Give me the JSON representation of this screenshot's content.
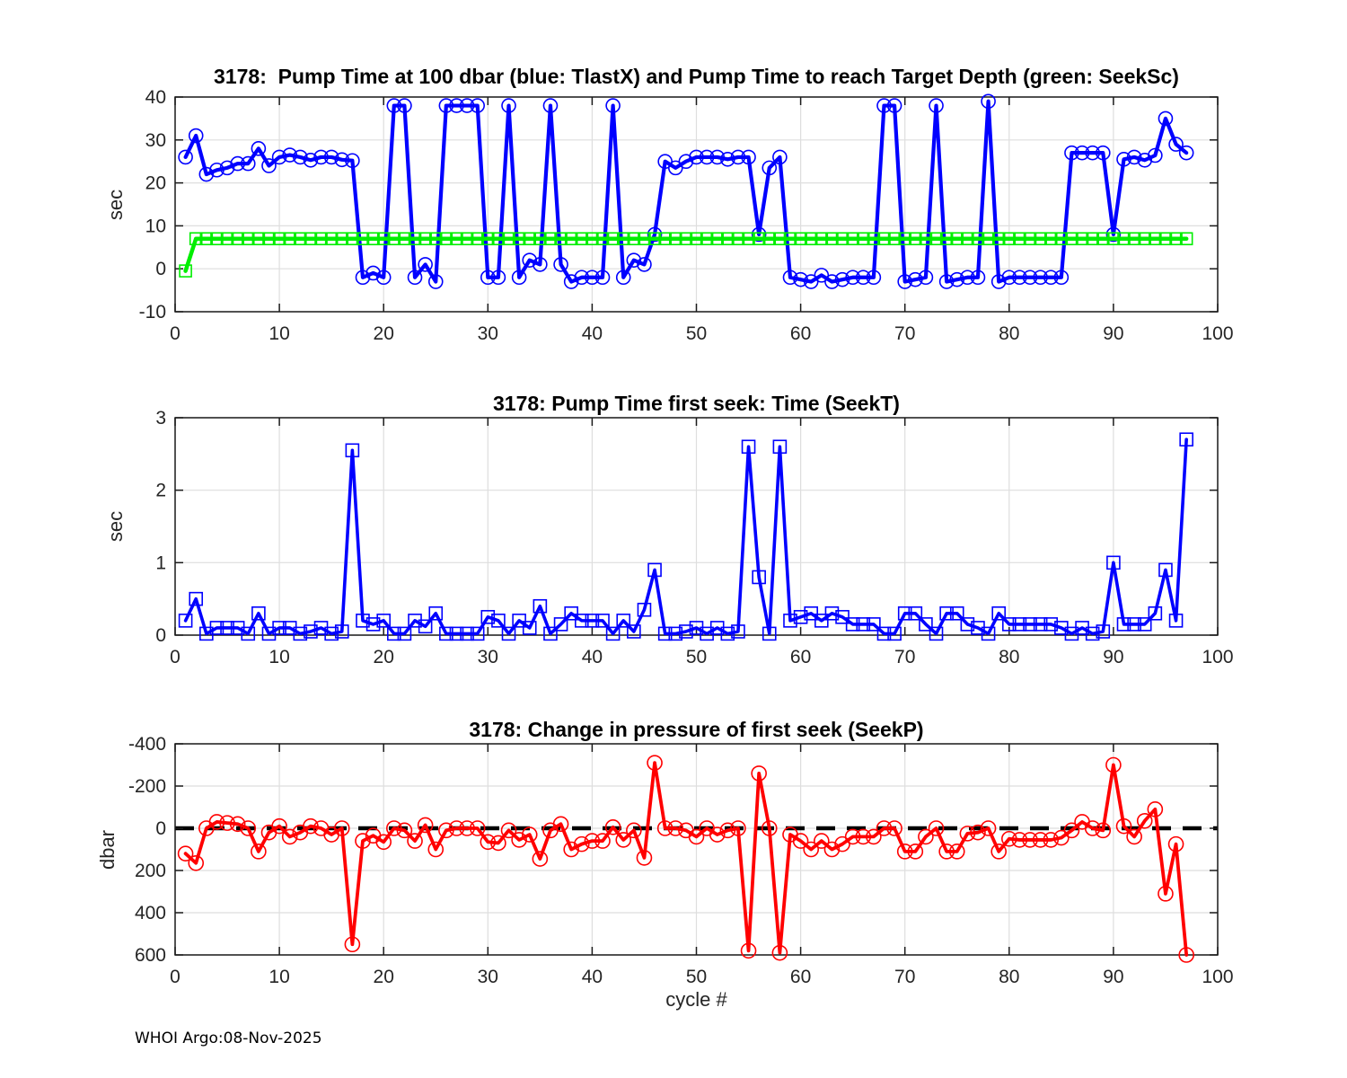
{
  "footer": "WHOI Argo:08-Nov-2025",
  "xlabel": "cycle #",
  "colors": {
    "blue": "#0000ff",
    "green": "#00ee00",
    "red": "#ff0000",
    "zero_line": "#000000",
    "grid": "#dedede",
    "axis": "#1a1a1a"
  },
  "chart_data": [
    {
      "type": "line",
      "title": "3178:  Pump Time at 100 dbar (blue: TlastX) and Pump Time to reach Target Depth (green: SeekSc)",
      "ylabel": "sec",
      "xlabel": "",
      "xlim": [
        0,
        100
      ],
      "xticks": [
        0,
        10,
        20,
        30,
        40,
        50,
        60,
        70,
        80,
        90,
        100
      ],
      "ylim": [
        -10,
        40
      ],
      "yticks": [
        -10,
        0,
        10,
        20,
        30,
        40
      ],
      "y_reversed": false,
      "grid": true,
      "zero_line": false,
      "x_rule": "x = cycle number, 1..97",
      "series": [
        {
          "name": "TlastX",
          "color": "#0000ff",
          "marker": "circle",
          "marker_size": 15,
          "line_width": 4.2,
          "values": [
            26,
            31,
            22,
            23,
            23.5,
            24.5,
            24.5,
            28,
            24,
            26,
            26.5,
            26,
            25.3,
            26,
            26,
            25.4,
            25.2,
            -2,
            -1,
            -2,
            38,
            38,
            -2,
            1,
            -3,
            38,
            38,
            38,
            38,
            -2,
            -2,
            38,
            -2,
            2,
            1,
            38,
            1,
            -3,
            -2,
            -2,
            -2,
            38,
            -2,
            2,
            1,
            8,
            25,
            23.5,
            25,
            26,
            26,
            26,
            25.5,
            26,
            26,
            8,
            23.5,
            26,
            -2,
            -2.5,
            -3,
            -1.5,
            -3,
            -2.5,
            -2,
            -2,
            -2,
            38,
            38,
            -3,
            -2.5,
            -2,
            38,
            -3,
            -2.5,
            -2,
            -2,
            39,
            -3,
            -2,
            -2,
            -2,
            -2,
            -2,
            -2,
            27,
            27,
            27,
            27,
            8,
            25.5,
            26,
            25.3,
            26.4,
            35,
            29,
            27
          ]
        },
        {
          "name": "SeekSc",
          "color": "#00ee00",
          "marker": "square",
          "marker_size": 13,
          "line_width": 4.5,
          "values": [
            -0.5,
            7,
            7,
            7,
            7,
            7,
            7,
            7,
            7,
            7,
            7,
            7,
            7,
            7,
            7,
            7,
            7,
            7,
            7,
            7,
            7,
            7,
            7,
            7,
            7,
            7,
            7,
            7,
            7,
            7,
            7,
            7,
            7,
            7,
            7,
            7,
            7,
            7,
            7,
            7,
            7,
            7,
            7,
            7,
            7,
            7,
            7,
            7,
            7,
            7,
            7,
            7,
            7,
            7,
            7,
            7,
            7,
            7,
            7,
            7,
            7,
            7,
            7,
            7,
            7,
            7,
            7,
            7,
            7,
            7,
            7,
            7,
            7,
            7,
            7,
            7,
            7,
            7,
            7,
            7,
            7,
            7,
            7,
            7,
            7,
            7,
            7,
            7,
            7,
            7,
            7,
            7,
            7,
            7,
            7,
            7,
            7
          ]
        }
      ]
    },
    {
      "type": "line",
      "title": "3178: Pump Time first seek: Time (SeekT)",
      "ylabel": "sec",
      "xlabel": "",
      "xlim": [
        0,
        100
      ],
      "xticks": [
        0,
        10,
        20,
        30,
        40,
        50,
        60,
        70,
        80,
        90,
        100
      ],
      "ylim": [
        0,
        3
      ],
      "yticks": [
        0,
        1,
        2,
        3
      ],
      "y_reversed": false,
      "grid": true,
      "zero_line": false,
      "x_rule": "x = cycle number, 1..97",
      "series": [
        {
          "name": "SeekT",
          "color": "#0000ff",
          "marker": "square",
          "marker_size": 14,
          "line_width": 3.6,
          "values": [
            0.2,
            0.5,
            0.02,
            0.1,
            0.1,
            0.1,
            0.02,
            0.3,
            0.02,
            0.1,
            0.1,
            0.02,
            0.05,
            0.1,
            0.02,
            0.05,
            2.55,
            0.2,
            0.15,
            0.2,
            0.02,
            0.02,
            0.2,
            0.12,
            0.3,
            0.02,
            0.02,
            0.02,
            0.02,
            0.25,
            0.2,
            0.02,
            0.2,
            0.1,
            0.4,
            0.02,
            0.15,
            0.3,
            0.2,
            0.2,
            0.2,
            0.02,
            0.2,
            0.05,
            0.35,
            0.9,
            0.02,
            0.02,
            0.05,
            0.1,
            0.02,
            0.1,
            0.02,
            0.05,
            2.6,
            0.8,
            0.02,
            2.6,
            0.2,
            0.25,
            0.3,
            0.2,
            0.3,
            0.25,
            0.15,
            0.15,
            0.15,
            0.02,
            0.02,
            0.3,
            0.3,
            0.15,
            0.02,
            0.3,
            0.3,
            0.15,
            0.1,
            0.02,
            0.3,
            0.15,
            0.15,
            0.15,
            0.15,
            0.15,
            0.1,
            0.02,
            0.1,
            0.02,
            0.05,
            1.0,
            0.15,
            0.15,
            0.15,
            0.3,
            0.9,
            0.2,
            2.7
          ]
        }
      ]
    },
    {
      "type": "line",
      "title": "3178: Change in pressure of first seek (SeekP)",
      "ylabel": "dbar",
      "xlabel": "cycle #",
      "xlim": [
        0,
        100
      ],
      "xticks": [
        0,
        10,
        20,
        30,
        40,
        50,
        60,
        70,
        80,
        90,
        100
      ],
      "ylim": [
        -400,
        600
      ],
      "yticks": [
        -400,
        -200,
        0,
        200,
        400,
        600
      ],
      "y_reversed": true,
      "grid": true,
      "zero_line": true,
      "x_rule": "x = cycle number, 1..97",
      "series": [
        {
          "name": "SeekP",
          "color": "#ff0000",
          "marker": "circle",
          "marker_size": 16,
          "line_width": 3.8,
          "values": [
            120,
            165,
            0,
            -30,
            -25,
            -20,
            0,
            110,
            20,
            -10,
            40,
            20,
            -10,
            0,
            30,
            0,
            550,
            60,
            35,
            65,
            0,
            10,
            60,
            -15,
            100,
            10,
            0,
            0,
            0,
            65,
            70,
            10,
            55,
            30,
            145,
            10,
            -20,
            100,
            75,
            60,
            60,
            -5,
            55,
            10,
            140,
            -310,
            0,
            0,
            10,
            40,
            0,
            30,
            10,
            0,
            580,
            -260,
            0,
            590,
            30,
            60,
            100,
            60,
            100,
            75,
            40,
            40,
            40,
            0,
            0,
            110,
            110,
            40,
            0,
            110,
            110,
            25,
            20,
            0,
            110,
            50,
            55,
            55,
            55,
            55,
            45,
            10,
            -30,
            0,
            10,
            -300,
            -10,
            40,
            -35,
            -90,
            310,
            75,
            600
          ]
        }
      ]
    }
  ]
}
